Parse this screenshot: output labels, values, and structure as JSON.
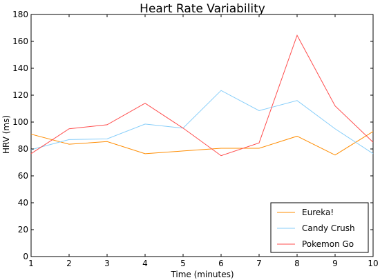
{
  "chart_data": {
    "type": "line",
    "title": "Heart Rate Variability",
    "xlabel": "Time (minutes)",
    "ylabel": "HRV (ms)",
    "x": [
      1,
      2,
      3,
      4,
      5,
      6,
      7,
      8,
      9,
      10
    ],
    "xlim": [
      1,
      10
    ],
    "ylim": [
      0,
      180
    ],
    "xticks": [
      1,
      2,
      3,
      4,
      5,
      6,
      7,
      8,
      9,
      10
    ],
    "yticks": [
      0,
      20,
      40,
      60,
      80,
      100,
      120,
      140,
      160,
      180
    ],
    "grid": false,
    "legend_position": "bottom-right",
    "series": [
      {
        "name": "Eureka!",
        "color": "#ff8c00",
        "values": [
          91,
          83.5,
          85.5,
          76.5,
          78.5,
          80.5,
          80.5,
          89.5,
          75.5,
          93
        ]
      },
      {
        "name": "Candy Crush",
        "color": "#87cefa",
        "values": [
          79.5,
          87,
          87.5,
          98.5,
          95.5,
          123.5,
          108.5,
          116,
          95,
          76.5
        ]
      },
      {
        "name": "Pokemon Go",
        "color": "#ff4c4c",
        "values": [
          76.5,
          95,
          98,
          114,
          95.5,
          75,
          84.5,
          164.5,
          112,
          85
        ]
      }
    ]
  }
}
